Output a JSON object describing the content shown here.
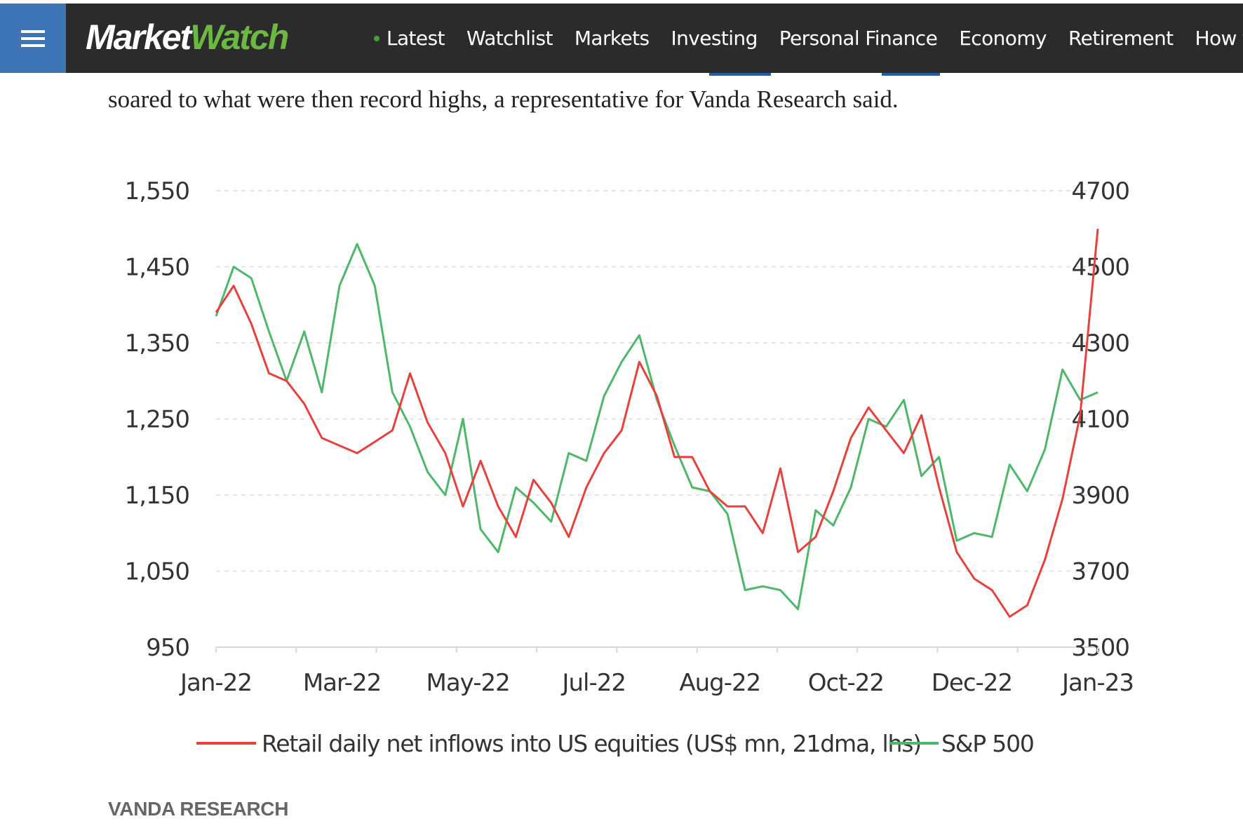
{
  "header": {
    "menu_icon": "hamburger-menu-icon",
    "logo_market": "Market",
    "logo_watch": "Watch",
    "nav_items": [
      "Latest",
      "Watchlist",
      "Markets",
      "Investing",
      "Personal Finance",
      "Economy",
      "Retirement",
      "How to"
    ],
    "colors": {
      "bar": "#2b2b2b",
      "menu": "#3d74b5",
      "logo_green": "#6bb843"
    }
  },
  "article": {
    "paragraph": "soared to what were then record highs, a representative for Vanda Research said.",
    "source": "VANDA RESEARCH"
  },
  "chart_data": {
    "type": "line",
    "x_labels": [
      "Jan-22",
      "Mar-22",
      "May-22",
      "Jul-22",
      "Aug-22",
      "Oct-22",
      "Dec-22",
      "Jan-23"
    ],
    "left_axis": {
      "ticks": [
        "1,550",
        "1,450",
        "1,350",
        "1,250",
        "1,150",
        "1,050",
        "950"
      ],
      "ylim": [
        950,
        1550
      ]
    },
    "right_axis": {
      "ticks": [
        "4700",
        "4500",
        "4300",
        "4100",
        "3900",
        "3700",
        "3500"
      ],
      "ylim": [
        3500,
        4700
      ]
    },
    "grid": true,
    "legend": "bottom",
    "series": [
      {
        "name": "Retail daily net inflows into US equities (US$ mn, 21dma, lhs)",
        "color": "#e8413c",
        "axis": "left",
        "x": [
          0,
          2,
          4,
          6,
          8,
          10,
          12,
          14,
          16,
          18,
          20,
          22,
          24,
          26,
          28,
          30,
          32,
          34,
          36,
          38,
          40,
          42,
          44,
          46,
          48,
          50,
          52,
          54,
          56,
          58,
          60,
          62,
          64,
          66,
          68,
          70,
          72,
          74,
          76,
          78,
          80,
          82,
          84,
          86,
          88,
          90,
          92,
          94,
          96,
          98,
          100
        ],
        "values": [
          1390,
          1425,
          1375,
          1310,
          1300,
          1270,
          1225,
          1215,
          1205,
          1220,
          1235,
          1310,
          1245,
          1205,
          1135,
          1195,
          1135,
          1095,
          1170,
          1140,
          1095,
          1160,
          1205,
          1235,
          1325,
          1280,
          1200,
          1200,
          1155,
          1135,
          1135,
          1100,
          1185,
          1075,
          1095,
          1155,
          1225,
          1265,
          1235,
          1205,
          1255,
          1160,
          1075,
          1040,
          1025,
          990,
          1005,
          1065,
          1145,
          1255,
          1500
        ]
      },
      {
        "name": "S&P 500",
        "color": "#4cb86a",
        "axis": "right",
        "x": [
          0,
          2,
          4,
          6,
          8,
          10,
          12,
          14,
          16,
          18,
          20,
          22,
          24,
          26,
          28,
          30,
          32,
          34,
          36,
          38,
          40,
          42,
          44,
          46,
          48,
          50,
          52,
          54,
          56,
          58,
          60,
          62,
          64,
          66,
          68,
          70,
          72,
          74,
          76,
          78,
          80,
          82,
          84,
          86,
          88,
          90,
          92,
          94,
          96,
          98,
          100
        ],
        "values": [
          4370,
          4500,
          4470,
          4330,
          4200,
          4330,
          4170,
          4450,
          4560,
          4450,
          4170,
          4080,
          3960,
          3900,
          4100,
          3810,
          3750,
          3920,
          3880,
          3830,
          4010,
          3990,
          4160,
          4250,
          4320,
          4150,
          4030,
          3920,
          3910,
          3850,
          3650,
          3660,
          3650,
          3600,
          3860,
          3820,
          3920,
          4100,
          4080,
          4150,
          3950,
          4000,
          3780,
          3800,
          3790,
          3980,
          3910,
          4020,
          4230,
          4150,
          4170
        ]
      }
    ]
  }
}
